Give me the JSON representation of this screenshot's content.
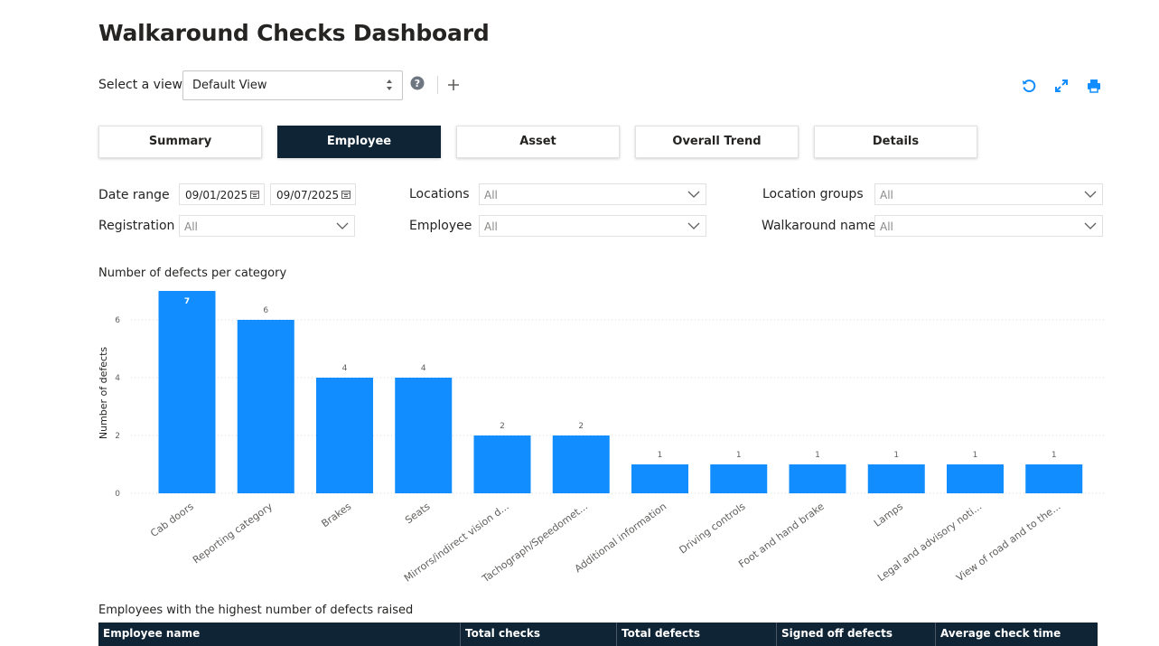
{
  "page": {
    "title": "Walkaround Checks Dashboard"
  },
  "view": {
    "label": "Select a view",
    "selected": "Default View"
  },
  "toolbar": {
    "icons": [
      "refresh-icon",
      "expand-icon",
      "print-icon"
    ],
    "accent": "#118dff"
  },
  "tabs": [
    {
      "label": "Summary",
      "active": false
    },
    {
      "label": "Employee",
      "active": true
    },
    {
      "label": "Asset",
      "active": false
    },
    {
      "label": "Overall Trend",
      "active": false
    },
    {
      "label": "Details",
      "active": false
    }
  ],
  "filters": {
    "date_range": {
      "label": "Date range",
      "start": "09/01/2025",
      "end": "09/07/2025"
    },
    "locations": {
      "label": "Locations",
      "value": "All"
    },
    "location_groups": {
      "label": "Location groups",
      "value": "All"
    },
    "registration": {
      "label": "Registration",
      "value": "All"
    },
    "employee": {
      "label": "Employee",
      "value": "All"
    },
    "walkaround_name": {
      "label": "Walkaround name",
      "value": "All"
    }
  },
  "chart_title": "Number of defects per category",
  "chart_data": {
    "type": "bar",
    "title": "Number of defects per category",
    "ylabel": "Number of defects",
    "xlabel": "",
    "categories": [
      "Cab doors",
      "Reporting category",
      "Brakes",
      "Seats",
      "Mirrors/indirect vision d...",
      "Tachograph/Speedomet...",
      "Additional information",
      "Driving controls",
      "Foot and hand brake",
      "Lamps",
      "Legal and advisory noti...",
      "View of road and to the..."
    ],
    "values": [
      7,
      6,
      4,
      4,
      2,
      2,
      1,
      1,
      1,
      1,
      1,
      1
    ],
    "yticks": [
      0,
      2,
      4,
      6
    ],
    "ylim": [
      0,
      7
    ],
    "grid": true,
    "color": "#118dff"
  },
  "table": {
    "title": "Employees with the highest number of defects raised",
    "columns": [
      "Employee name",
      "Total checks",
      "Total defects",
      "Signed off defects",
      "Average check time"
    ]
  }
}
